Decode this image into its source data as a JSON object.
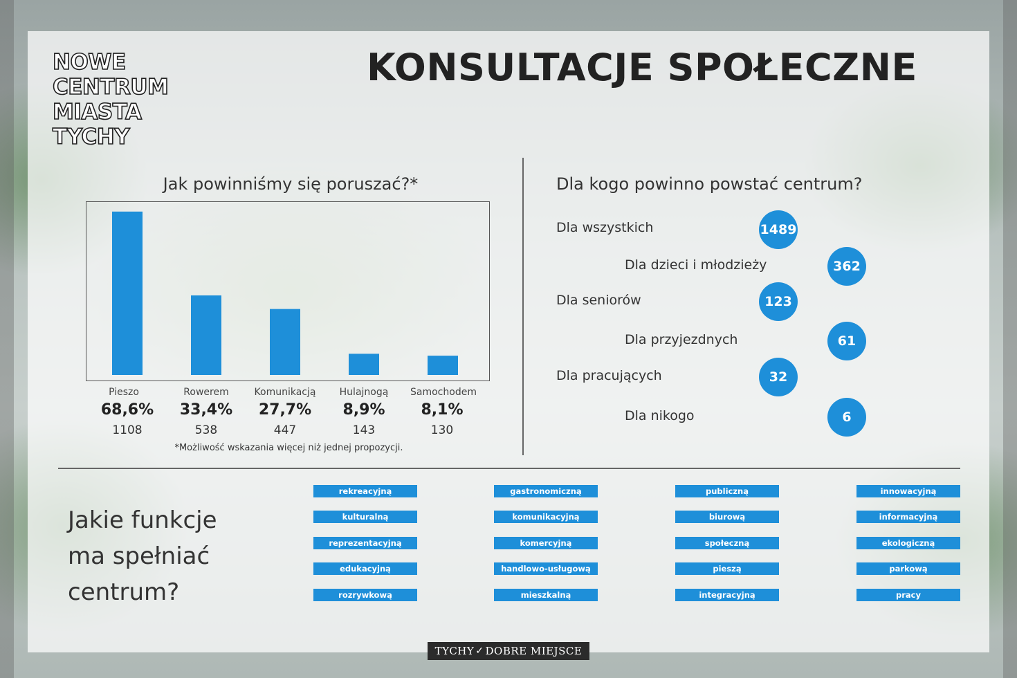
{
  "logo": {
    "lines": [
      "NOWE",
      "CENTRUM",
      "MIASTA",
      "TYCHY"
    ]
  },
  "title": "KONSULTACJE SPOŁECZNE",
  "section1": {
    "title": "Jak powinniśmy się poruszać?*",
    "footnote": "*Możliwość wskazania więcej niż jednej propozycji."
  },
  "chart_data": {
    "type": "bar",
    "title": "Jak powinniśmy się poruszać?*",
    "categories": [
      "Pieszo",
      "Rowerem",
      "Komunikacją",
      "Hulajnogą",
      "Samochodem"
    ],
    "percent_labels": [
      "68,6%",
      "33,4%",
      "27,7%",
      "8,9%",
      "8,1%"
    ],
    "values": [
      68.6,
      33.4,
      27.7,
      8.9,
      8.1
    ],
    "counts": [
      1108,
      538,
      447,
      143,
      130
    ],
    "ylim": [
      0,
      70
    ],
    "grid": false,
    "color": "#1e8fd9"
  },
  "section2": {
    "title": "Dla kogo powinno powstać centrum?",
    "groups": [
      {
        "label": "Dla wszystkich",
        "value": "1489"
      },
      {
        "label": "Dla dzieci i młodzieży",
        "value": "362"
      },
      {
        "label": "Dla seniorów",
        "value": "123"
      },
      {
        "label": "Dla przyjezdnych",
        "value": "61"
      },
      {
        "label": "Dla pracujących",
        "value": "32"
      },
      {
        "label": "Dla nikogo",
        "value": "6"
      }
    ]
  },
  "section3": {
    "title_lines": [
      "Jakie funkcje",
      "ma spełniać",
      "centrum?"
    ],
    "tags": [
      [
        "rekreacyjną",
        "kulturalną",
        "reprezentacyjną",
        "edukacyjną",
        "rozrywkową"
      ],
      [
        "gastronomiczną",
        "komunikacyjną",
        "komercyjną",
        "handlowo-usługową",
        "mieszkalną"
      ],
      [
        "publiczną",
        "biurową",
        "społeczną",
        "pieszą",
        "integracyjną"
      ],
      [
        "innowacyjną",
        "informacyjną",
        "ekologiczną",
        "parkową",
        "pracy"
      ]
    ]
  },
  "footer": {
    "left": "TYCHY",
    "right": "DOBRE MIEJSCE"
  },
  "colors": {
    "accent": "#1e8fd9",
    "text": "#333333"
  }
}
